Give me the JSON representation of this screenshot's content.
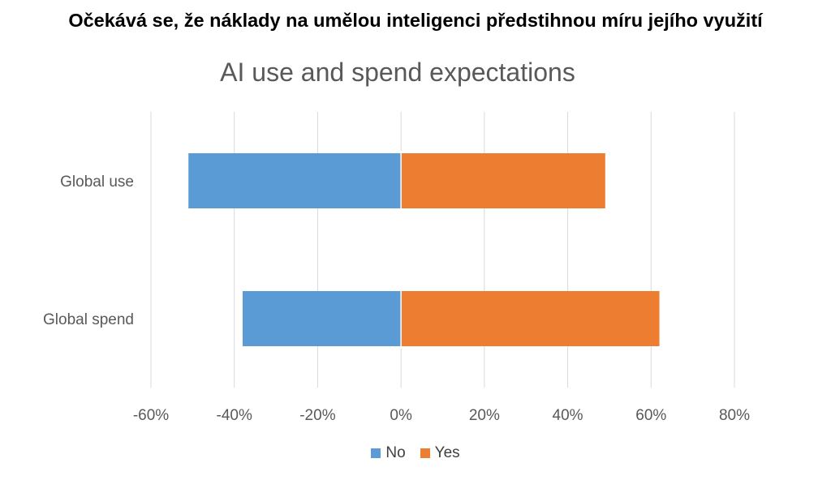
{
  "headline": "Očekává se, že náklady na umělou inteligenci předstihnou míru jejího využití",
  "colors": {
    "no": "#5B9BD5",
    "yes": "#ED7D31",
    "grid": "#D9D9D9",
    "text": "#595959"
  },
  "chart_data": {
    "type": "bar",
    "orientation": "horizontal",
    "stacked": true,
    "title": "AI use and spend expectations",
    "categories": [
      "Global use",
      "Global spend"
    ],
    "series": [
      {
        "name": "No",
        "values": [
          -51,
          -38
        ]
      },
      {
        "name": "Yes",
        "values": [
          49,
          62
        ]
      }
    ],
    "xlim": [
      -60,
      80
    ],
    "x_ticks": [
      "-60%",
      "-40%",
      "-20%",
      "0%",
      "20%",
      "40%",
      "60%",
      "80%"
    ],
    "grid": true,
    "legend": "bottom"
  }
}
